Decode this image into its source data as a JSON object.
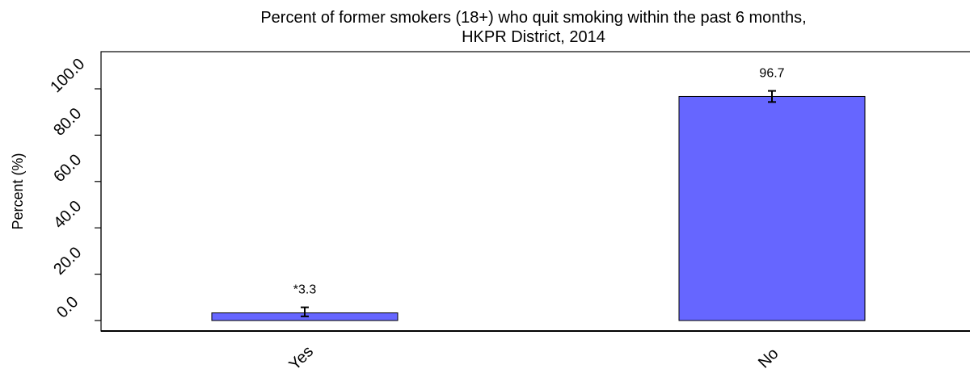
{
  "chart_data": {
    "type": "bar",
    "title": [
      "Percent of former smokers (18+) who quit smoking within the past 6 months,",
      "HKPR District, 2014"
    ],
    "ylabel": "Percent (%)",
    "xlabel": "",
    "categories": [
      "Yes",
      "No"
    ],
    "values": [
      3.3,
      96.7
    ],
    "data_labels": [
      "*3.3",
      "96.7"
    ],
    "error_bars": [
      [
        1.8,
        5.7
      ],
      [
        94.3,
        99.1
      ]
    ],
    "ylim": [
      0,
      110
    ],
    "yticks": [
      0,
      20,
      40,
      60,
      80,
      100
    ],
    "ytick_labels": [
      "0.0",
      "20.0",
      "40.0",
      "60.0",
      "80.0",
      "100.0"
    ],
    "grid": false,
    "bar_color": "#6666ff"
  }
}
